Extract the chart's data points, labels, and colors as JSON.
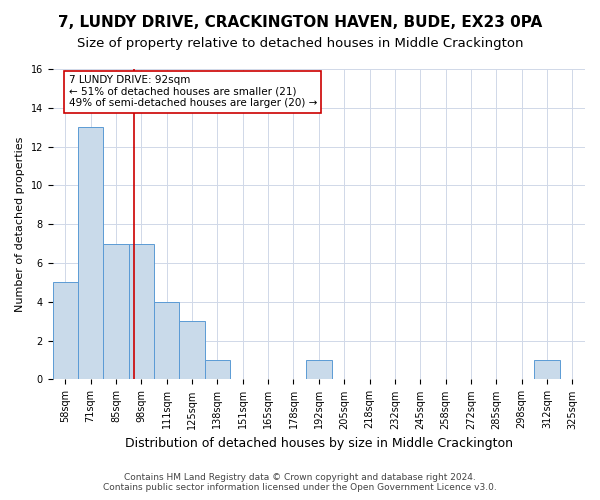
{
  "title": "7, LUNDY DRIVE, CRACKINGTON HAVEN, BUDE, EX23 0PA",
  "subtitle": "Size of property relative to detached houses in Middle Crackington",
  "xlabel": "Distribution of detached houses by size in Middle Crackington",
  "ylabel": "Number of detached properties",
  "footnote1": "Contains HM Land Registry data © Crown copyright and database right 2024.",
  "footnote2": "Contains public sector information licensed under the Open Government Licence v3.0.",
  "bins": [
    "58sqm",
    "71sqm",
    "85sqm",
    "98sqm",
    "111sqm",
    "125sqm",
    "138sqm",
    "151sqm",
    "165sqm",
    "178sqm",
    "192sqm",
    "205sqm",
    "218sqm",
    "232sqm",
    "245sqm",
    "258sqm",
    "272sqm",
    "285sqm",
    "298sqm",
    "312sqm",
    "325sqm"
  ],
  "values": [
    5,
    13,
    7,
    7,
    4,
    3,
    1,
    0,
    0,
    0,
    1,
    0,
    0,
    0,
    0,
    0,
    0,
    0,
    0,
    1,
    0
  ],
  "bar_color": "#c9daea",
  "bar_edge_color": "#5b9bd5",
  "red_line_x": 2.69,
  "red_line_color": "#cc0000",
  "annotation_text": "7 LUNDY DRIVE: 92sqm\n← 51% of detached houses are smaller (21)\n49% of semi-detached houses are larger (20) →",
  "annotation_box_color": "#ffffff",
  "annotation_box_edge_color": "#cc0000",
  "ylim": [
    0,
    16
  ],
  "yticks": [
    0,
    2,
    4,
    6,
    8,
    10,
    12,
    14,
    16
  ],
  "title_fontsize": 11,
  "subtitle_fontsize": 9.5,
  "xlabel_fontsize": 9,
  "ylabel_fontsize": 8,
  "annotation_fontsize": 7.5,
  "tick_fontsize": 7,
  "footnote_fontsize": 6.5,
  "background_color": "#ffffff",
  "grid_color": "#d0d8e8"
}
